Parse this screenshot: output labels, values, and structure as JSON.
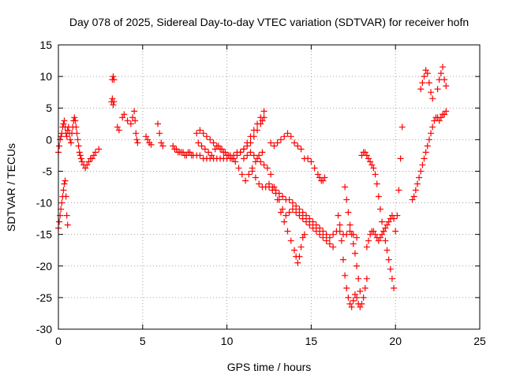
{
  "chart_data": {
    "type": "scatter",
    "title": "Day 078 of 2025, Sidereal Day-to-day VTEC variation (SDTVAR) for receiver hofn",
    "xlabel": "GPS time / hours",
    "ylabel": "SDTVAR / TECUs",
    "xlim": [
      0,
      25
    ],
    "ylim": [
      -30,
      15
    ],
    "xticks": [
      0,
      5,
      10,
      15,
      20,
      25
    ],
    "yticks": [
      -30,
      -25,
      -20,
      -15,
      -10,
      -5,
      0,
      5,
      10,
      15
    ],
    "grid": true,
    "marker": "+",
    "series": [
      {
        "name": "SDTVAR",
        "color": "#ff0000",
        "x": [
          0.0,
          0.05,
          0.1,
          0.15,
          0.2,
          0.25,
          0.3,
          0.35,
          0.4,
          0.45,
          0.5,
          0.55,
          0.6,
          0.65,
          0.7,
          0.75,
          0.8,
          0.85,
          0.9,
          0.95,
          1.0,
          1.05,
          1.1,
          1.15,
          1.2,
          1.25,
          1.3,
          1.35,
          1.4,
          1.5,
          1.6,
          1.7,
          1.8,
          1.9,
          2.0,
          2.1,
          2.2,
          2.4,
          0.0,
          0.05,
          0.1,
          0.15,
          0.2,
          0.25,
          0.3,
          0.35,
          0.4,
          0.45,
          0.5,
          0.55,
          3.15,
          3.2,
          3.25,
          3.3,
          3.2,
          3.25,
          3.3,
          3.5,
          3.6,
          3.8,
          3.9,
          4.1,
          4.3,
          4.4,
          4.5,
          4.55,
          4.6,
          4.65,
          4.7,
          5.2,
          5.3,
          5.4,
          5.5,
          5.9,
          6.0,
          6.1,
          6.2,
          6.8,
          6.9,
          7.0,
          7.1,
          7.2,
          7.3,
          7.4,
          7.5,
          7.6,
          7.7,
          7.8,
          7.9,
          8.0,
          8.2,
          8.4,
          8.6,
          8.8,
          9.0,
          9.2,
          9.4,
          9.6,
          9.8,
          10.0,
          10.2,
          10.4,
          10.6,
          10.8,
          11.0,
          11.2,
          11.4,
          11.6,
          11.8,
          12.0,
          12.2,
          8.2,
          8.4,
          8.6,
          8.8,
          9.0,
          9.2,
          9.4,
          9.6,
          9.8,
          10.0,
          10.2,
          10.4,
          10.6,
          10.8,
          11.0,
          11.2,
          11.4,
          11.6,
          11.8,
          12.0,
          12.1,
          12.2,
          8.3,
          8.5,
          8.7,
          8.9,
          9.1,
          9.3,
          9.5,
          9.7,
          9.9,
          10.1,
          10.3,
          10.5,
          10.7,
          10.9,
          11.1,
          11.3,
          11.5,
          11.7,
          11.9,
          12.1,
          11.0,
          11.2,
          11.4,
          11.6,
          11.8,
          12.0,
          12.2,
          12.4,
          12.6,
          12.8,
          13.0,
          13.2,
          13.4,
          13.6,
          13.8,
          14.0,
          14.1,
          14.2,
          14.3,
          14.4,
          14.5,
          14.6,
          12.6,
          12.8,
          13.0,
          13.2,
          13.4,
          13.6,
          13.8,
          14.0,
          14.2,
          14.4,
          11.5,
          11.7,
          11.9,
          12.1,
          12.3,
          12.5,
          12.7,
          12.9,
          13.1,
          13.3,
          13.5,
          13.7,
          13.9,
          14.1,
          14.3,
          14.5,
          14.7,
          14.9,
          15.1,
          15.3,
          15.5,
          15.7,
          15.9,
          16.1,
          16.3,
          16.5,
          16.7,
          16.9,
          17.1,
          17.3,
          17.5,
          17.7,
          14.6,
          14.8,
          15.0,
          15.2,
          15.4,
          15.5,
          15.6,
          15.7,
          15.8,
          12.5,
          12.7,
          12.9,
          13.1,
          13.3,
          13.5,
          13.7,
          13.9,
          14.1,
          14.3,
          14.5,
          14.7,
          14.9,
          15.1,
          15.3,
          15.5,
          15.7,
          15.9,
          16.1,
          16.3,
          16.6,
          16.7,
          16.8,
          16.9,
          17.0,
          17.1,
          17.2,
          17.3,
          17.4,
          17.5,
          17.6,
          17.7,
          17.8,
          17.9,
          18.0,
          18.1,
          18.2,
          18.3,
          17.0,
          17.1,
          17.2,
          17.3,
          17.4,
          17.5,
          17.6,
          17.7,
          17.8,
          17.9,
          18.0,
          18.1,
          18.2,
          18.3,
          18.4,
          18.5,
          18.6,
          18.7,
          18.8,
          18.9,
          19.0,
          19.1,
          19.2,
          19.3,
          19.4,
          19.5,
          19.6,
          19.7,
          19.8,
          19.9,
          18.3,
          18.4,
          18.5,
          18.6,
          18.7,
          18.8,
          18.9,
          19.0,
          19.1,
          19.2,
          19.3,
          19.4,
          19.5,
          19.6,
          19.7,
          19.8,
          19.9,
          20.0,
          20.1,
          20.2,
          20.3,
          20.4,
          21.0,
          21.1,
          21.2,
          21.3,
          21.4,
          21.5,
          21.6,
          21.7,
          21.8,
          21.9,
          22.0,
          22.1,
          22.2,
          22.3,
          22.4,
          22.5,
          22.6,
          22.7,
          22.8,
          22.9,
          23.0,
          21.5,
          21.6,
          21.7,
          21.8,
          21.9,
          22.0,
          22.1,
          22.2,
          22.5,
          22.6,
          22.7,
          22.8,
          22.9,
          23.0
        ],
        "y": [
          -2.0,
          -1.0,
          0.0,
          0.5,
          1.0,
          2.0,
          2.5,
          3.0,
          2.0,
          1.0,
          0.5,
          1.5,
          2.0,
          1.0,
          0.0,
          -0.5,
          1.0,
          2.0,
          3.0,
          3.5,
          3.0,
          2.0,
          1.0,
          0.0,
          -1.0,
          -2.0,
          -2.5,
          -3.0,
          -3.5,
          -4.0,
          -4.5,
          -4.0,
          -3.5,
          -3.0,
          -3.0,
          -2.5,
          -2.0,
          -1.5,
          -14.0,
          -13.0,
          -12.0,
          -11.0,
          -10.0,
          -9.0,
          -8.0,
          -7.0,
          -6.5,
          -9.0,
          -12.0,
          -13.5,
          6.0,
          6.5,
          5.5,
          6.0,
          9.5,
          10.0,
          9.5,
          2.0,
          1.5,
          3.5,
          4.0,
          3.0,
          2.5,
          3.5,
          4.5,
          3.0,
          1.0,
          0.0,
          -0.5,
          0.5,
          0.0,
          -0.5,
          -0.8,
          2.5,
          1.0,
          -0.5,
          -1.0,
          -1.0,
          -1.5,
          -1.5,
          -2.0,
          -2.0,
          -2.0,
          -2.0,
          -2.5,
          -2.5,
          -2.0,
          -2.0,
          -2.5,
          -2.5,
          -2.5,
          -2.5,
          -3.0,
          -3.0,
          -3.0,
          -3.0,
          -3.0,
          -3.0,
          -3.0,
          -3.0,
          -3.0,
          -3.0,
          -2.5,
          -2.0,
          -1.5,
          -0.5,
          0.5,
          1.5,
          2.5,
          3.5,
          4.5,
          1.0,
          1.5,
          1.0,
          0.5,
          0.0,
          -0.5,
          -1.0,
          -1.5,
          -2.0,
          -2.5,
          -2.5,
          -2.5,
          -2.0,
          -2.0,
          -1.5,
          -1.0,
          -0.5,
          0.5,
          1.5,
          2.5,
          3.0,
          3.5,
          -0.5,
          -1.0,
          -1.5,
          -2.0,
          -2.5,
          -1.5,
          -1.0,
          -1.5,
          -2.0,
          -2.5,
          -3.0,
          -3.5,
          -4.5,
          -5.5,
          -6.5,
          -5.5,
          -4.5,
          -3.5,
          -2.5,
          -2.0,
          -3.0,
          -2.5,
          -2.0,
          -2.5,
          -3.0,
          -3.5,
          -4.0,
          -4.5,
          -5.5,
          -7.5,
          -9.5,
          -11.5,
          -13.0,
          -14.5,
          -16.0,
          -17.5,
          -18.5,
          -19.5,
          -18.5,
          -17.0,
          -15.5,
          -15.0,
          -0.5,
          -1.0,
          -0.5,
          0.0,
          0.5,
          1.0,
          0.5,
          -0.5,
          -1.0,
          -1.5,
          -5.0,
          -6.0,
          -7.0,
          -7.5,
          -7.5,
          -7.0,
          -7.5,
          -8.0,
          -8.5,
          -9.0,
          -9.5,
          -9.5,
          -10.0,
          -10.5,
          -11.0,
          -11.5,
          -12.0,
          -12.5,
          -13.0,
          -13.5,
          -14.0,
          -14.5,
          -15.0,
          -15.5,
          -15.0,
          -14.5,
          -14.5,
          -15.0,
          -15.0,
          -14.5,
          -15.0,
          -15.5,
          -3.0,
          -3.0,
          -3.5,
          -4.5,
          -5.5,
          -6.0,
          -6.5,
          -6.5,
          -6.0,
          -7.5,
          -8.0,
          -8.5,
          -9.5,
          -11.0,
          -12.0,
          -11.5,
          -11.0,
          -11.5,
          -12.0,
          -12.5,
          -13.0,
          -13.5,
          -14.0,
          -14.5,
          -15.0,
          -15.5,
          -16.0,
          -16.5,
          -17.0,
          -12.0,
          -13.5,
          -16.0,
          -19.0,
          -21.5,
          -23.5,
          -25.0,
          -26.0,
          -26.5,
          -25.5,
          -24.5,
          -25.0,
          -26.0,
          -26.5,
          -26.0,
          -25.0,
          -23.5,
          -22.0,
          -7.5,
          -9.5,
          -11.5,
          -13.5,
          -15.0,
          -16.5,
          -18.0,
          -20.0,
          -22.0,
          -24.0,
          -2.5,
          -2.0,
          -2.0,
          -2.5,
          -3.0,
          -3.5,
          -4.0,
          -4.5,
          -5.5,
          -7.0,
          -9.0,
          -11.0,
          -13.0,
          -14.5,
          -16.0,
          -17.5,
          -19.0,
          -20.5,
          -22.0,
          -23.5,
          -17.0,
          -16.0,
          -15.0,
          -14.5,
          -14.5,
          -15.0,
          -15.5,
          -16.0,
          -15.5,
          -15.0,
          -14.5,
          -14.0,
          -13.5,
          -13.0,
          -12.5,
          -12.0,
          -12.5,
          -14.5,
          -12.0,
          -8.0,
          -3.0,
          2.0,
          -9.5,
          -9.0,
          -8.0,
          -7.0,
          -6.0,
          -5.0,
          -4.0,
          -3.0,
          -2.0,
          -1.0,
          0.0,
          1.0,
          2.0,
          3.0,
          3.5,
          3.5,
          3.0,
          3.5,
          4.0,
          4.0,
          4.5,
          8.0,
          9.0,
          10.0,
          11.0,
          10.5,
          9.0,
          7.5,
          6.5,
          8.0,
          9.5,
          10.5,
          11.5,
          9.5,
          8.5
        ]
      }
    ]
  }
}
